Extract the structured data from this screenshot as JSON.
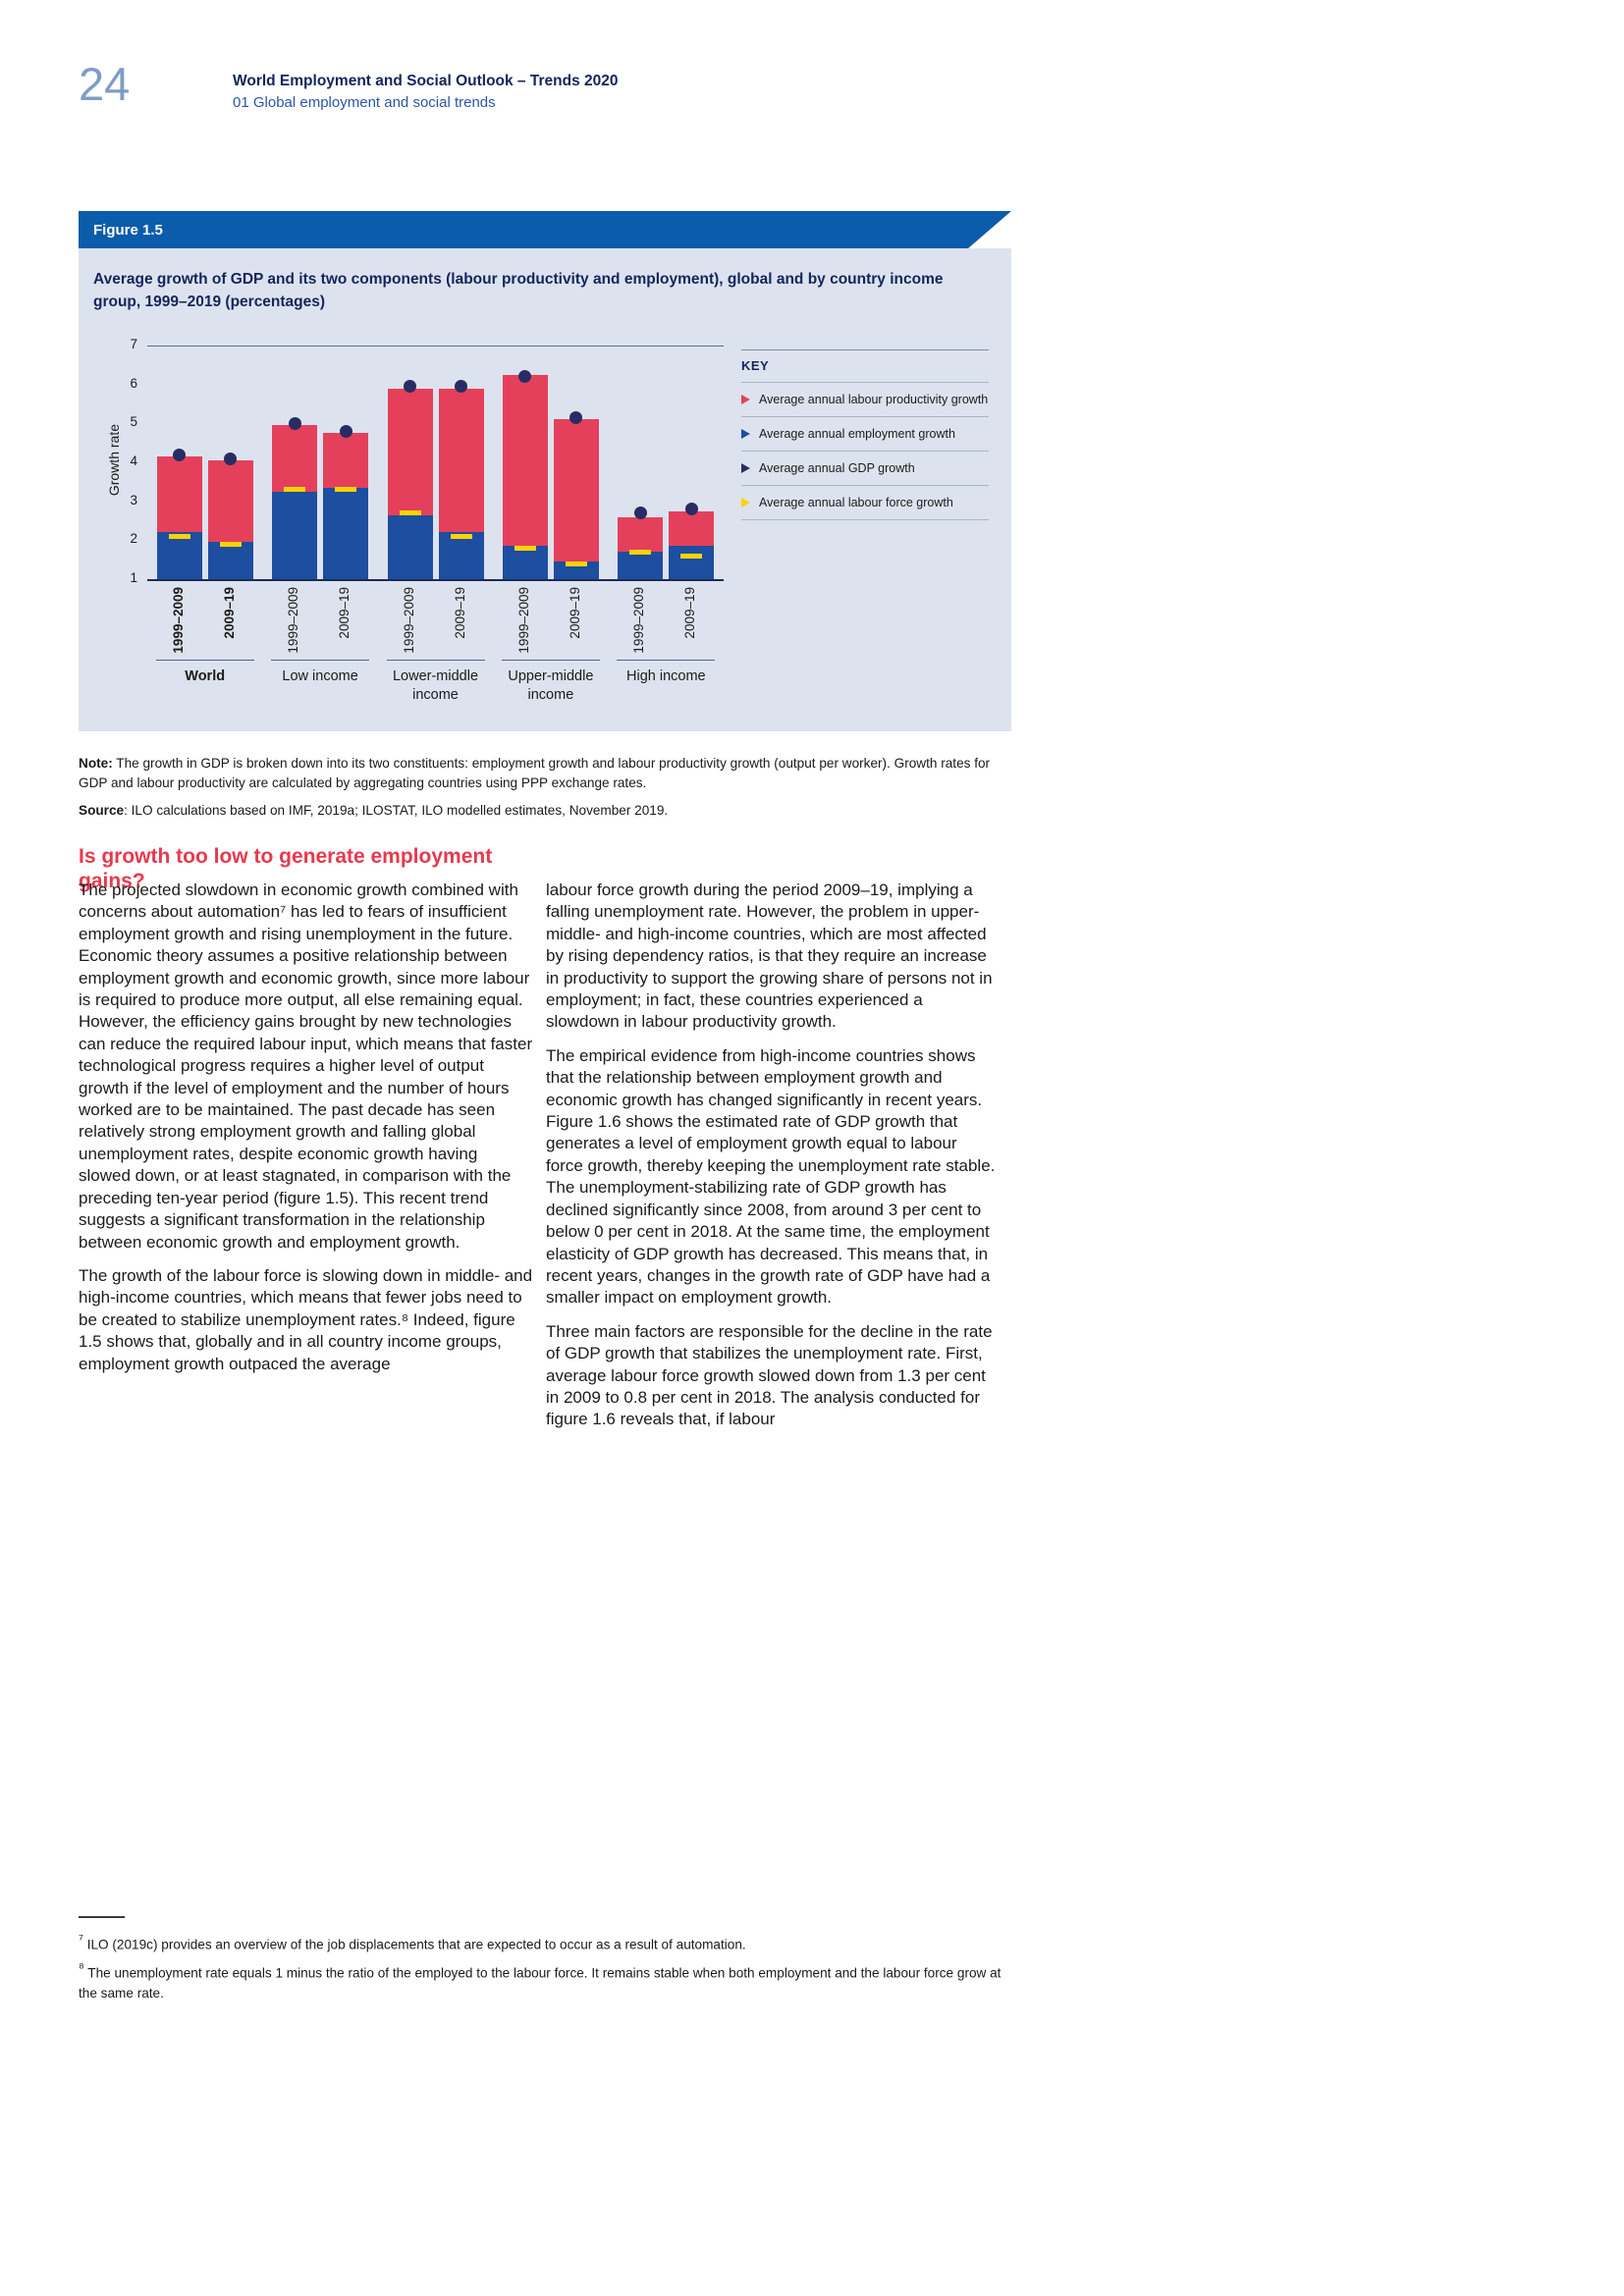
{
  "page": {
    "number": "24",
    "header_title": "World Employment and Social Outlook – Trends 2020",
    "header_subtitle": "01  Global employment and social trends"
  },
  "figure": {
    "banner_label": "Figure 1.5",
    "note_label": "Note:",
    "note_text": " The growth in GDP is broken down into its two constituents: employment growth and labour productivity growth (output per worker). Growth rates for GDP and labour productivity are calculated by aggregating countries using PPP exchange rates.",
    "source_label": "Source",
    "source_text": ": ILO calculations based on IMF, 2019a; ILOSTAT, ILO modelled estimates, November 2019."
  },
  "chart_data": {
    "type": "stacked-bar",
    "title": "Average growth of GDP and its two components (labour productivity and employment), global and by country income group, 1999–2019 (percentages)",
    "ylabel": "Growth rate",
    "ylim": [
      1,
      7
    ],
    "yticks": [
      1,
      2,
      3,
      4,
      5,
      6,
      7
    ],
    "colors": {
      "productivity": "#e5405b",
      "employment": "#1d4e9f",
      "gdp": "#272d63",
      "labour_force": "#ffd200",
      "banner": "#0b5cab",
      "panel": "#dde3ee",
      "heading_red": "#e8394e"
    },
    "legend": {
      "title": "KEY",
      "entries": [
        {
          "label": "Average annual labour productivity growth",
          "series": "productivity"
        },
        {
          "label": "Average annual employment growth",
          "series": "employment"
        },
        {
          "label": "Average annual GDP growth",
          "series": "gdp"
        },
        {
          "label": "Average annual labour force growth",
          "series": "labour_force"
        }
      ]
    },
    "groups": [
      {
        "label": "World",
        "emphasis": true,
        "bars": [
          {
            "period": "1999–2009",
            "employment": 2.2,
            "gdp": 4.15,
            "gdp_dot": 4.2,
            "labour_force": 2.1
          },
          {
            "period": "2009–19",
            "employment": 1.95,
            "gdp": 4.05,
            "gdp_dot": 4.1,
            "labour_force": 1.9
          }
        ]
      },
      {
        "label": "Low income",
        "emphasis": false,
        "bars": [
          {
            "period": "1999–2009",
            "employment": 3.25,
            "gdp": 4.95,
            "gdp_dot": 5.0,
            "labour_force": 3.3
          },
          {
            "period": "2009–19",
            "employment": 3.35,
            "gdp": 4.75,
            "gdp_dot": 4.8,
            "labour_force": 3.3
          }
        ]
      },
      {
        "label": "Lower-middle income",
        "emphasis": false,
        "bars": [
          {
            "period": "1999–2009",
            "employment": 2.65,
            "gdp": 5.9,
            "gdp_dot": 5.95,
            "labour_force": 2.7
          },
          {
            "period": "2009–19",
            "employment": 2.2,
            "gdp": 5.9,
            "gdp_dot": 5.95,
            "labour_force": 2.1
          }
        ]
      },
      {
        "label": "Upper-middle income",
        "emphasis": false,
        "bars": [
          {
            "period": "1999–2009",
            "employment": 1.85,
            "gdp": 6.25,
            "gdp_dot": 6.2,
            "labour_force": 1.8
          },
          {
            "period": "2009–19",
            "employment": 1.45,
            "gdp": 5.1,
            "gdp_dot": 5.15,
            "labour_force": 1.4
          }
        ]
      },
      {
        "label": "High income",
        "emphasis": false,
        "bars": [
          {
            "period": "1999–2009",
            "employment": 1.7,
            "gdp": 2.6,
            "gdp_dot": 2.7,
            "labour_force": 1.7
          },
          {
            "period": "2009–19",
            "employment": 1.85,
            "gdp": 2.75,
            "gdp_dot": 2.8,
            "labour_force": 1.6
          }
        ]
      }
    ]
  },
  "article": {
    "heading": "Is growth too low to generate employment gains?",
    "col_left": [
      "The projected slowdown in economic growth combined with concerns about automation⁷ has led to fears of insufficient employment growth and rising unemployment in the future. Economic theory assumes a positive relationship between employment growth and economic growth, since more labour is required to produce more output, all else remaining equal. However, the efficiency gains brought by new technologies can reduce the required labour input, which means that faster technological progress requires a higher level of output growth if the level of employment and the number of hours worked are to be maintained. The past decade has seen relatively strong employment growth and falling global unemployment rates, despite economic growth having slowed down, or at least stagnated, in comparison with the preceding ten-year period (figure 1.5). This recent trend suggests a significant transformation in the relationship between economic growth and employment growth.",
      "The growth of the labour force is slowing down in middle- and high-income countries, which means that fewer jobs need to be created to stabilize unemployment rates.⁸ Indeed, figure 1.5 shows that, globally and in all country income groups, employment growth outpaced the average"
    ],
    "col_right": [
      "labour force growth during the period 2009–19, implying a falling unemployment rate. However, the problem in upper-middle- and high-income countries, which are most affected by rising dependency ratios, is that they require an increase in productivity to support the growing share of persons not in employment; in fact, these countries experienced a slowdown in labour productivity growth.",
      "The empirical evidence from high-income countries shows that the relationship between employment growth and economic growth has changed significantly in recent years. Figure 1.6 shows the estimated rate of GDP growth that generates a level of employment growth equal to labour force growth, thereby keeping the unemployment rate stable. The unemployment-stabilizing rate of GDP growth has declined significantly since 2008, from around 3 per cent to below 0 per cent in 2018. At the same time, the employment elasticity of GDP growth has decreased. This means that, in recent years, changes in the growth rate of GDP have had a smaller impact on employment growth.",
      "Three main factors are responsible for the decline in the rate of GDP growth that stabilizes the unemployment rate. First, average labour force growth slowed down from 1.3 per cent in 2009 to 0.8 per cent in 2018. The analysis conducted for figure 1.6 reveals that, if labour"
    ]
  },
  "footnotes": [
    {
      "marker": "⁷",
      "text": " ILO (2019c) provides an overview of the job displacements that are expected to occur as a result of automation."
    },
    {
      "marker": "⁸",
      "text": " The unemployment rate equals 1 minus the ratio of the employed to the labour force. It remains stable when both employment and the labour force grow at the same rate."
    }
  ]
}
